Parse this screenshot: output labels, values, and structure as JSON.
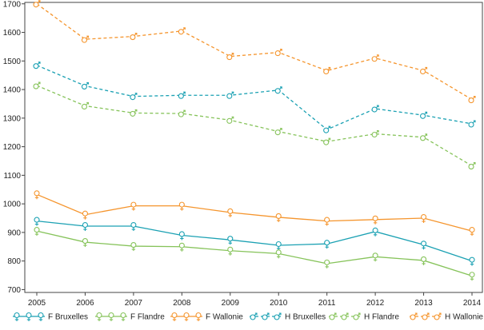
{
  "chart_data": {
    "type": "line",
    "categories": [
      "2005",
      "2006",
      "2007",
      "2008",
      "2009",
      "2010",
      "2011",
      "2012",
      "2013",
      "2014"
    ],
    "ylim": [
      690,
      1705
    ],
    "yticks": [
      700,
      800,
      900,
      1000,
      1100,
      1200,
      1300,
      1400,
      1500,
      1600,
      1700
    ],
    "grid": false,
    "legend_position": "bottom",
    "series": [
      {
        "name": "F Bruxelles",
        "color": "#1ba1b3",
        "dash": "solid",
        "marker": "female",
        "values": [
          940,
          922,
          922,
          890,
          874,
          855,
          860,
          903,
          857,
          800
        ]
      },
      {
        "name": "F Flandre",
        "color": "#86c35a",
        "dash": "solid",
        "marker": "female",
        "values": [
          905,
          866,
          852,
          850,
          836,
          826,
          791,
          815,
          802,
          748
        ]
      },
      {
        "name": "F Wallonie",
        "color": "#f5952d",
        "dash": "solid",
        "marker": "female",
        "values": [
          1033,
          962,
          993,
          993,
          970,
          953,
          940,
          945,
          950,
          905
        ]
      },
      {
        "name": "H Bruxelles",
        "color": "#1ba1b3",
        "dash": "dashed",
        "marker": "male",
        "values": [
          1485,
          1413,
          1376,
          1380,
          1380,
          1398,
          1260,
          1333,
          1310,
          1280
        ]
      },
      {
        "name": "H Flandre",
        "color": "#86c35a",
        "dash": "dashed",
        "marker": "male",
        "values": [
          1414,
          1343,
          1318,
          1316,
          1293,
          1253,
          1218,
          1245,
          1233,
          1133
        ]
      },
      {
        "name": "H Wallonie",
        "color": "#f5952d",
        "dash": "dashed",
        "marker": "male",
        "values": [
          1700,
          1576,
          1586,
          1605,
          1516,
          1530,
          1466,
          1510,
          1466,
          1365
        ]
      }
    ]
  }
}
